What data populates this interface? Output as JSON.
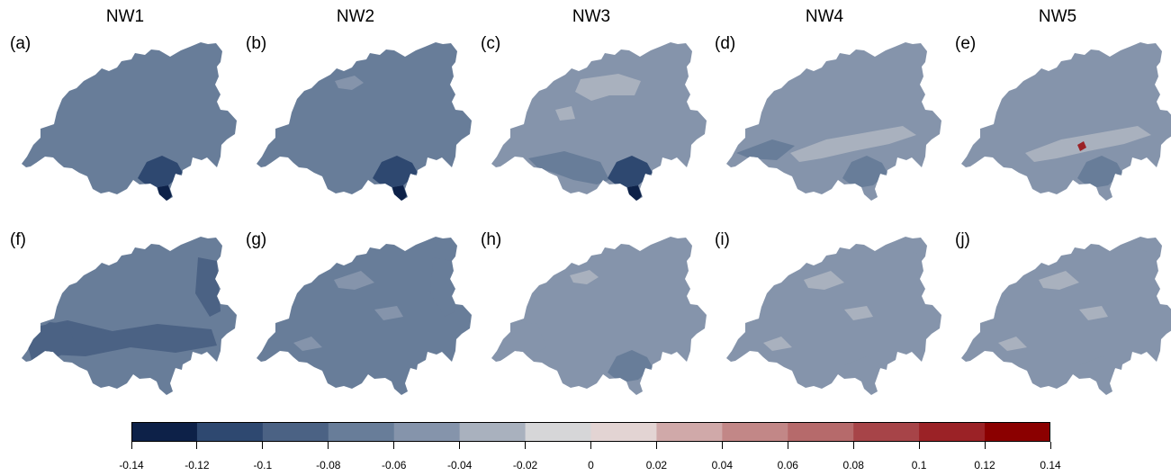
{
  "chart_data": {
    "type": "heatmap",
    "columns": [
      "NW1",
      "NW2",
      "NW3",
      "NW4",
      "NW5"
    ],
    "panel_labels": [
      [
        "(a)",
        "(b)",
        "(c)",
        "(d)",
        "(e)"
      ],
      [
        "(f)",
        "(g)",
        "(h)",
        "(i)",
        "(j)"
      ]
    ],
    "colorbar": {
      "ticks": [
        -0.14,
        -0.12,
        -0.1,
        -0.08,
        -0.06,
        -0.04,
        -0.02,
        0,
        0.02,
        0.04,
        0.06,
        0.08,
        0.1,
        0.12,
        0.14
      ],
      "tick_labels": [
        "-0.14",
        "-0.12",
        "-0.1",
        "-0.08",
        "-0.06",
        "-0.04",
        "-0.02",
        "0",
        "0.02",
        "0.04",
        "0.06",
        "0.08",
        "0.1",
        "0.12",
        "0.14"
      ],
      "colors": [
        "#0d2148",
        "#2e4870",
        "#4b6284",
        "#687d99",
        "#8594ab",
        "#a9b1be",
        "#d6d6d8",
        "#e3d4d3",
        "#d0a9a9",
        "#c28787",
        "#b66a6b",
        "#a74448",
        "#9b2226",
        "#8b0000"
      ]
    },
    "panels": [
      {
        "label": "(a)",
        "column": "NW1",
        "base_value": -0.07,
        "regions": [
          {
            "area": "south lobe",
            "value": -0.11
          },
          {
            "area": "tip",
            "value": -0.13
          },
          {
            "area": "west basin",
            "value": -0.08
          }
        ]
      },
      {
        "label": "(b)",
        "column": "NW2",
        "base_value": -0.07,
        "regions": [
          {
            "area": "north patch",
            "value": -0.05
          },
          {
            "area": "south lobe",
            "value": -0.12
          },
          {
            "area": "tip",
            "value": -0.13
          }
        ]
      },
      {
        "label": "(c)",
        "column": "NW3",
        "base_value": -0.05,
        "regions": [
          {
            "area": "central patches",
            "value": -0.03
          },
          {
            "area": "south band",
            "value": -0.07
          },
          {
            "area": "south lobe",
            "value": -0.11
          },
          {
            "area": "tip",
            "value": -0.13
          }
        ]
      },
      {
        "label": "(d)",
        "column": "NW4",
        "base_value": -0.05,
        "regions": [
          {
            "area": "central band",
            "value": -0.03
          },
          {
            "area": "south lobe",
            "value": -0.08
          },
          {
            "area": "west band",
            "value": -0.07
          }
        ]
      },
      {
        "label": "(e)",
        "column": "NW5",
        "base_value": -0.05,
        "regions": [
          {
            "area": "central band",
            "value": -0.03
          },
          {
            "area": "south lobe",
            "value": -0.07
          },
          {
            "area": "hotspot",
            "value": 0.11
          }
        ]
      },
      {
        "label": "(f)",
        "column": "NW1",
        "base_value": -0.07,
        "regions": [
          {
            "area": "band",
            "value": -0.09
          },
          {
            "area": "east",
            "value": -0.09
          },
          {
            "area": "west",
            "value": -0.09
          }
        ]
      },
      {
        "label": "(g)",
        "column": "NW2",
        "base_value": -0.07,
        "regions": [
          {
            "area": "light patches",
            "value": -0.05
          },
          {
            "area": "east",
            "value": -0.08
          },
          {
            "area": "south",
            "value": -0.08
          }
        ]
      },
      {
        "label": "(h)",
        "column": "NW3",
        "base_value": -0.05,
        "regions": [
          {
            "area": "north patch",
            "value": -0.03
          },
          {
            "area": "south lobe",
            "value": -0.07
          },
          {
            "area": "west",
            "value": -0.06
          }
        ]
      },
      {
        "label": "(i)",
        "column": "NW4",
        "base_value": -0.05,
        "regions": [
          {
            "area": "light patches",
            "value": -0.03
          },
          {
            "area": "edges",
            "value": -0.06
          }
        ]
      },
      {
        "label": "(j)",
        "column": "NW5",
        "base_value": -0.05,
        "regions": [
          {
            "area": "light patches",
            "value": -0.03
          },
          {
            "area": "edges",
            "value": -0.06
          }
        ]
      }
    ]
  }
}
